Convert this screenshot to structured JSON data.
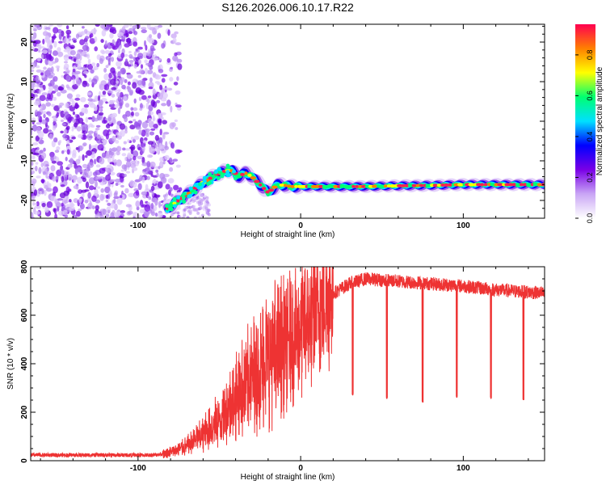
{
  "title": "S126.2026.006.10.17.R22",
  "chart_data": [
    {
      "type": "heatmap",
      "xlabel": "Height of straight line (km)",
      "ylabel": "Frequency (Hz)",
      "xlim": [
        -166,
        150
      ],
      "ylim": [
        -24.5,
        24.5
      ],
      "xticks": [
        -100,
        0,
        100
      ],
      "yticks": [
        -20,
        -10,
        0,
        10,
        20
      ],
      "noise_region": {
        "x": [
          -166,
          -80
        ],
        "y": [
          -24.5,
          24.5
        ]
      },
      "ridge": {
        "x": [
          -82,
          -75,
          -68,
          -60,
          -52,
          -46,
          -42,
          -38,
          -34,
          -30,
          -25,
          -20,
          -17,
          -14,
          -10,
          -5,
          0,
          20,
          40,
          60,
          80,
          100,
          120,
          140,
          150
        ],
        "y": [
          -22,
          -20,
          -18,
          -15.5,
          -13.5,
          -12.5,
          -12.5,
          -14,
          -13,
          -14,
          -16,
          -18,
          -17,
          -16,
          -16.2,
          -16.5,
          -16.5,
          -16.5,
          -16.5,
          -16.3,
          -16.2,
          -16,
          -16,
          -16,
          -16
        ]
      },
      "colorbar": {
        "label": "Normalized spectral amplitude",
        "range": [
          0,
          0.95
        ],
        "ticks": [
          "0.0",
          "0.2",
          "0.4",
          "0.6",
          "0.8"
        ],
        "tick_values": [
          0,
          0.2,
          0.4,
          0.6,
          0.8
        ],
        "colors": [
          "#ffffff",
          "#c9a6f5",
          "#7a00e6",
          "#0000ff",
          "#00e0ff",
          "#00ff70",
          "#ffff00",
          "#ff8000",
          "#ff0050"
        ]
      }
    },
    {
      "type": "line",
      "xlabel": "Height of straight line (km)",
      "ylabel": "SNR (10 * v/v)",
      "xlim": [
        -166,
        150
      ],
      "ylim": [
        0,
        800
      ],
      "xticks": [
        -100,
        0,
        100
      ],
      "yticks": [
        0,
        200,
        400,
        600,
        800
      ],
      "color": "#ee3333",
      "envelope": {
        "x": [
          -166,
          -120,
          -90,
          -80,
          -70,
          -60,
          -50,
          -40,
          -30,
          -20,
          -10,
          0,
          10,
          20,
          30,
          40,
          60,
          80,
          100,
          120,
          150
        ],
        "y": [
          25,
          25,
          25,
          35,
          60,
          110,
          170,
          260,
          350,
          430,
          480,
          540,
          620,
          690,
          730,
          750,
          740,
          730,
          720,
          705,
          690
        ]
      },
      "dips": [
        {
          "x": 32,
          "y": 270
        },
        {
          "x": 53,
          "y": 255
        },
        {
          "x": 75,
          "y": 240
        },
        {
          "x": 96,
          "y": 260
        },
        {
          "x": 117,
          "y": 255
        },
        {
          "x": 137,
          "y": 250
        }
      ]
    }
  ]
}
